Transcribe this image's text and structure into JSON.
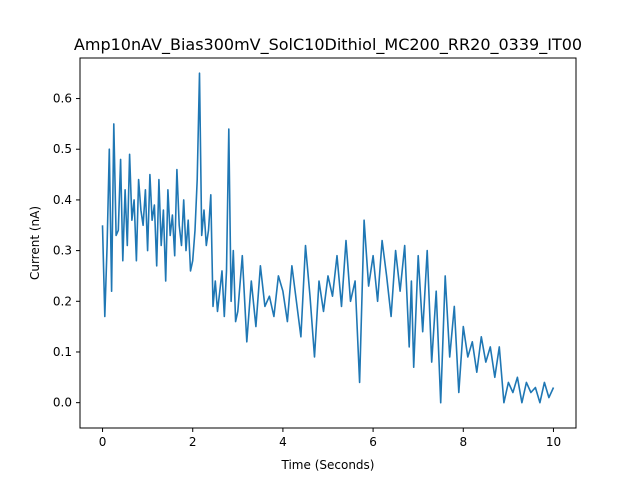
{
  "chart_data": {
    "type": "line",
    "title": "Amp10nAV_Bias300mV_SolC10Dithiol_MC200_RR20_0339_IT00",
    "xlabel": "Time (Seconds)",
    "ylabel": "Current (nA)",
    "xlim": [
      -0.5,
      10.5
    ],
    "ylim": [
      -0.05,
      0.68
    ],
    "xticks": [
      0,
      2,
      4,
      6,
      8,
      10
    ],
    "yticks": [
      0.0,
      0.1,
      0.2,
      0.3,
      0.4,
      0.5,
      0.6
    ],
    "xtick_labels": [
      "0",
      "2",
      "4",
      "6",
      "8",
      "10"
    ],
    "ytick_labels": [
      "0.0",
      "0.1",
      "0.2",
      "0.3",
      "0.4",
      "0.5",
      "0.6"
    ],
    "grid": false,
    "legend": "none",
    "series": [
      {
        "color": "#1f77b4",
        "x": [
          0,
          0.05,
          0.1,
          0.15,
          0.2,
          0.25,
          0.3,
          0.35,
          0.4,
          0.45,
          0.5,
          0.55,
          0.6,
          0.65,
          0.7,
          0.75,
          0.8,
          0.85,
          0.9,
          0.95,
          1.0,
          1.05,
          1.1,
          1.15,
          1.2,
          1.25,
          1.3,
          1.35,
          1.4,
          1.45,
          1.5,
          1.55,
          1.6,
          1.65,
          1.7,
          1.75,
          1.8,
          1.85,
          1.9,
          1.95,
          2.0,
          2.05,
          2.1,
          2.15,
          2.2,
          2.25,
          2.3,
          2.35,
          2.4,
          2.45,
          2.5,
          2.55,
          2.6,
          2.65,
          2.7,
          2.75,
          2.8,
          2.85,
          2.9,
          2.95,
          3.0,
          3.1,
          3.2,
          3.3,
          3.4,
          3.5,
          3.6,
          3.7,
          3.8,
          3.9,
          4.0,
          4.1,
          4.2,
          4.3,
          4.4,
          4.5,
          4.6,
          4.7,
          4.8,
          4.9,
          5.0,
          5.1,
          5.2,
          5.3,
          5.4,
          5.5,
          5.6,
          5.7,
          5.8,
          5.9,
          6.0,
          6.1,
          6.2,
          6.3,
          6.4,
          6.5,
          6.6,
          6.7,
          6.8,
          6.85,
          6.9,
          7.0,
          7.1,
          7.2,
          7.3,
          7.4,
          7.5,
          7.6,
          7.7,
          7.8,
          7.9,
          8.0,
          8.1,
          8.2,
          8.3,
          8.4,
          8.5,
          8.6,
          8.7,
          8.8,
          8.9,
          9.0,
          9.1,
          9.2,
          9.3,
          9.4,
          9.5,
          9.6,
          9.7,
          9.8,
          9.9,
          10.0
        ],
        "y": [
          0.35,
          0.17,
          0.31,
          0.5,
          0.22,
          0.55,
          0.33,
          0.34,
          0.48,
          0.28,
          0.42,
          0.31,
          0.49,
          0.36,
          0.4,
          0.28,
          0.44,
          0.38,
          0.35,
          0.42,
          0.3,
          0.45,
          0.36,
          0.39,
          0.27,
          0.44,
          0.31,
          0.38,
          0.24,
          0.42,
          0.33,
          0.37,
          0.29,
          0.46,
          0.35,
          0.31,
          0.4,
          0.3,
          0.36,
          0.26,
          0.28,
          0.34,
          0.44,
          0.65,
          0.33,
          0.38,
          0.31,
          0.34,
          0.41,
          0.19,
          0.24,
          0.18,
          0.22,
          0.26,
          0.17,
          0.26,
          0.54,
          0.2,
          0.3,
          0.16,
          0.18,
          0.29,
          0.12,
          0.24,
          0.15,
          0.27,
          0.19,
          0.21,
          0.17,
          0.25,
          0.22,
          0.16,
          0.27,
          0.2,
          0.13,
          0.31,
          0.21,
          0.09,
          0.24,
          0.18,
          0.25,
          0.21,
          0.29,
          0.19,
          0.32,
          0.2,
          0.24,
          0.04,
          0.36,
          0.23,
          0.29,
          0.2,
          0.32,
          0.25,
          0.17,
          0.3,
          0.22,
          0.31,
          0.11,
          0.24,
          0.07,
          0.29,
          0.14,
          0.3,
          0.08,
          0.22,
          0.0,
          0.25,
          0.09,
          0.19,
          0.02,
          0.15,
          0.09,
          0.12,
          0.06,
          0.13,
          0.08,
          0.11,
          0.05,
          0.11,
          0.0,
          0.04,
          0.02,
          0.05,
          0.0,
          0.04,
          0.02,
          0.03,
          0.0,
          0.04,
          0.01,
          0.03
        ]
      }
    ]
  }
}
